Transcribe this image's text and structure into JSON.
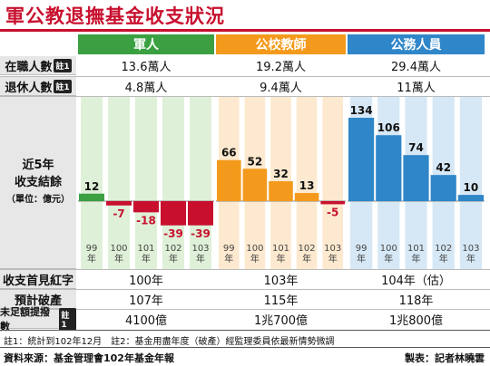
{
  "title": "軍公教退撫基金收支狀況",
  "columns": [
    {
      "label": "軍人",
      "color": "#3aa041",
      "light": "#dff0d8"
    },
    {
      "label": "公校教師",
      "color": "#f39a1c",
      "light": "#fde9cf"
    },
    {
      "label": "公務人員",
      "color": "#2f86c8",
      "light": "#d6e8f6"
    }
  ],
  "rows": {
    "employed": {
      "label": "在職人數",
      "tag": "註1",
      "values": [
        "13.6萬人",
        "19.2萬人",
        "29.4萬人"
      ]
    },
    "retired": {
      "label": "退休人數",
      "tag": "註1",
      "values": [
        "4.8萬人",
        "9.4萬人",
        "11萬人"
      ]
    },
    "first_deficit": {
      "label": "收支首見紅字",
      "values": [
        "100年",
        "103年",
        "104年（估）"
      ]
    },
    "bankrupt": {
      "label": "預計破產",
      "values": [
        "107年",
        "115年",
        "118年"
      ]
    },
    "unfunded": {
      "label": "未足額提撥數",
      "tag": "註1",
      "values": [
        "4100億",
        "1兆700億",
        "1兆800億"
      ]
    }
  },
  "chart_label": {
    "line1": "近5年",
    "line2": "收支結餘",
    "line3": "（單位：億元）"
  },
  "chart_data": [
    {
      "type": "bar",
      "group": "軍人",
      "categories": [
        "99年",
        "100年",
        "101年",
        "102年",
        "103年"
      ],
      "values": [
        12,
        -7,
        -18,
        -39,
        -39
      ]
    },
    {
      "type": "bar",
      "group": "公校教師",
      "categories": [
        "99年",
        "100年",
        "101年",
        "102年",
        "103年"
      ],
      "values": [
        66,
        52,
        32,
        13,
        -5
      ]
    },
    {
      "type": "bar",
      "group": "公務人員",
      "categories": [
        "99年",
        "100年",
        "101年",
        "102年",
        "103年"
      ],
      "values": [
        134,
        106,
        74,
        42,
        10
      ]
    }
  ],
  "year_labels": [
    [
      "99",
      "年"
    ],
    [
      "100",
      "年"
    ],
    [
      "101",
      "年"
    ],
    [
      "102",
      "年"
    ],
    [
      "103",
      "年"
    ]
  ],
  "negative_color": "#c8102e",
  "footnote": "註1：統計到102年12月　註2：基金用盡年度（破產）經監理委員依最新情勢微調",
  "source": "資料來源：基金管理會102年基金年報",
  "credit": "製表：記者林曉雲"
}
